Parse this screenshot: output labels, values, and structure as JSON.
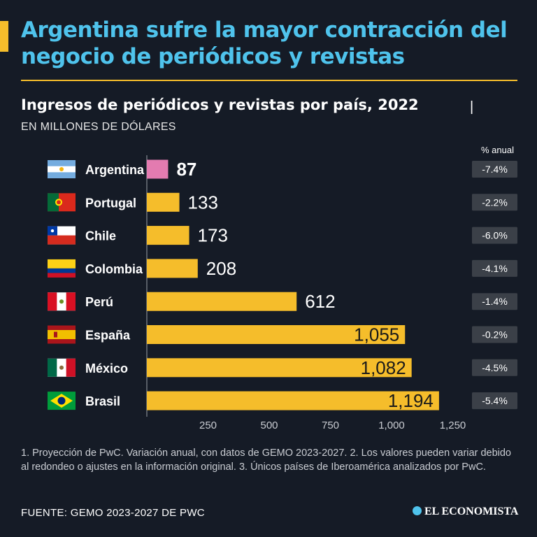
{
  "headline": "Argentina sufre la mayor contracción del negocio de periódicos y revistas",
  "subtitle": "Ingresos de periódicos y revistas por país, 2022",
  "subtitle_separator": "|",
  "units": "EN MILLONES DE DÓLARES",
  "pct_header": "% anual",
  "footnote": "1. Proyección de PwC. Variación anual, con datos de GEMO 2023-2027. 2. Los valores pueden variar debido al redondeo o ajustes en la información original. 3. Únicos países de Iberoamérica analizados por PwC.",
  "source": "FUENTE: GEMO 2023-2027 DE PWC",
  "brand": "EL ECONOMISTA",
  "colors": {
    "background": "#151b26",
    "title": "#4fc3ec",
    "bar": "#f5bd2b",
    "highlight_bar": "#e37bb0",
    "pct_box": "#3b4048"
  },
  "chart_data": {
    "type": "bar",
    "orientation": "horizontal",
    "title": "Ingresos de periódicos y revistas por país, 2022",
    "xlabel": "",
    "ylabel": "",
    "xlim": [
      0,
      1250
    ],
    "xticks": [
      250,
      500,
      750,
      1000,
      1250
    ],
    "xtick_labels": [
      "250",
      "500",
      "750",
      "1,000",
      "1,250"
    ],
    "categories": [
      "Argentina",
      "Portugal",
      "Chile",
      "Colombia",
      "Perú",
      "España",
      "México",
      "Brasil"
    ],
    "values": [
      87,
      133,
      173,
      208,
      612,
      1055,
      1082,
      1194
    ],
    "value_labels": [
      "87",
      "133",
      "173",
      "208",
      "612",
      "1,055",
      "1,082",
      "1,194"
    ],
    "flags": [
      "flag-argentina-icon",
      "flag-portugal-icon",
      "flag-chile-icon",
      "flag-colombia-icon",
      "flag-peru-icon",
      "flag-spain-icon",
      "flag-mexico-icon",
      "flag-brazil-icon"
    ],
    "highlight": "Argentina",
    "pct_anual": [
      "-7.4%",
      "-2.2%",
      "-6.0%",
      "-4.1%",
      "-1.4%",
      "-0.2%",
      "-4.5%",
      "-5.4%"
    ]
  }
}
